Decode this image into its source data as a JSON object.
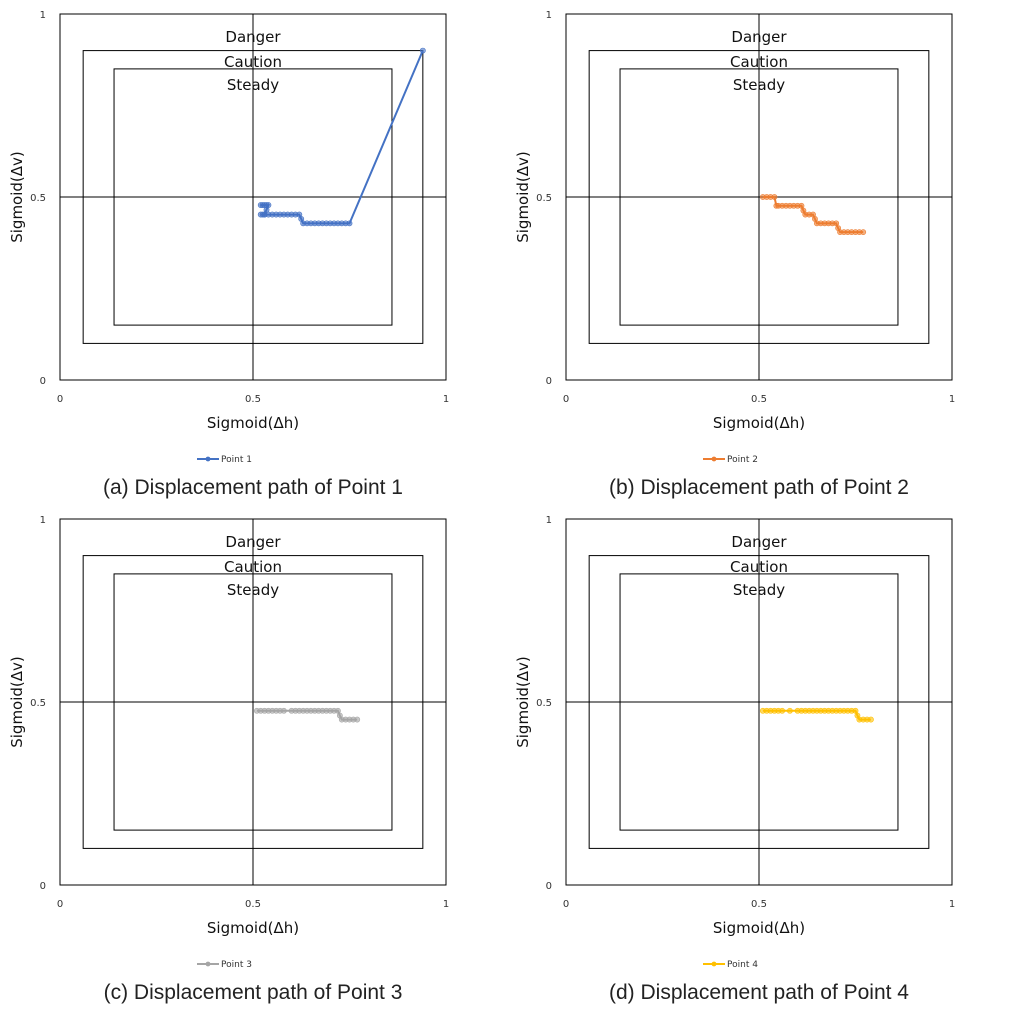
{
  "zone_labels": [
    "Danger",
    "Caution",
    "Steady"
  ],
  "chart_data": [
    {
      "type": "line",
      "caption": "(a) Displacement path of Point 1",
      "xlabel": "Sigmoid(Δh)",
      "ylabel": "Sigmoid(Δv)",
      "xlim": [
        0,
        1
      ],
      "ylim": [
        0,
        1
      ],
      "xticks": [
        "0",
        "0.5",
        "1"
      ],
      "yticks": [
        "0",
        "0.5",
        "1"
      ],
      "zones": {
        "danger": [
          0.06,
          0.94,
          0.1,
          0.9
        ],
        "steady": [
          0.14,
          0.86,
          0.15,
          0.85
        ]
      },
      "color": "#4472C4",
      "series": [
        {
          "name": "Point 1",
          "x": [
            0.52,
            0.525,
            0.53,
            0.535,
            0.54,
            0.535,
            0.53,
            0.525,
            0.52,
            0.53,
            0.54,
            0.55,
            0.56,
            0.57,
            0.58,
            0.59,
            0.6,
            0.61,
            0.62,
            0.625,
            0.63,
            0.64,
            0.65,
            0.66,
            0.67,
            0.68,
            0.69,
            0.7,
            0.71,
            0.72,
            0.73,
            0.74,
            0.75,
            0.94
          ],
          "y": [
            0.478,
            0.478,
            0.478,
            0.478,
            0.478,
            0.465,
            0.452,
            0.452,
            0.452,
            0.452,
            0.452,
            0.452,
            0.452,
            0.452,
            0.452,
            0.452,
            0.452,
            0.452,
            0.452,
            0.44,
            0.428,
            0.428,
            0.428,
            0.428,
            0.428,
            0.428,
            0.428,
            0.428,
            0.428,
            0.428,
            0.428,
            0.428,
            0.428,
            0.9
          ]
        }
      ]
    },
    {
      "type": "line",
      "caption": "(b) Displacement path of Point 2",
      "xlabel": "Sigmoid(Δh)",
      "ylabel": "Sigmoid(Δv)",
      "xlim": [
        0,
        1
      ],
      "ylim": [
        0,
        1
      ],
      "xticks": [
        "0",
        "0.5",
        "1"
      ],
      "yticks": [
        "0",
        "0.5",
        "1"
      ],
      "zones": {
        "danger": [
          0.06,
          0.94,
          0.1,
          0.9
        ],
        "steady": [
          0.14,
          0.86,
          0.15,
          0.85
        ]
      },
      "color": "#ED7D31",
      "series": [
        {
          "name": "Point 2",
          "x": [
            0.51,
            0.52,
            0.53,
            0.54,
            0.545,
            0.55,
            0.56,
            0.57,
            0.58,
            0.59,
            0.6,
            0.61,
            0.615,
            0.62,
            0.63,
            0.64,
            0.645,
            0.65,
            0.66,
            0.67,
            0.68,
            0.69,
            0.7,
            0.705,
            0.71,
            0.72,
            0.73,
            0.74,
            0.75,
            0.76,
            0.77
          ],
          "y": [
            0.5,
            0.5,
            0.5,
            0.5,
            0.476,
            0.476,
            0.476,
            0.476,
            0.476,
            0.476,
            0.476,
            0.476,
            0.463,
            0.452,
            0.452,
            0.452,
            0.44,
            0.428,
            0.428,
            0.428,
            0.428,
            0.428,
            0.428,
            0.415,
            0.404,
            0.404,
            0.404,
            0.404,
            0.404,
            0.404,
            0.404
          ]
        }
      ]
    },
    {
      "type": "line",
      "caption": "(c) Displacement path of Point 3",
      "xlabel": "Sigmoid(Δh)",
      "ylabel": "Sigmoid(Δv)",
      "xlim": [
        0,
        1
      ],
      "ylim": [
        0,
        1
      ],
      "xticks": [
        "0",
        "0.5",
        "1"
      ],
      "yticks": [
        "0",
        "0.5",
        "1"
      ],
      "zones": {
        "danger": [
          0.06,
          0.94,
          0.1,
          0.9
        ],
        "steady": [
          0.14,
          0.86,
          0.15,
          0.85
        ]
      },
      "color": "#A5A5A5",
      "series": [
        {
          "name": "Point 3",
          "x": [
            0.51,
            0.52,
            0.53,
            0.54,
            0.55,
            0.56,
            0.57,
            0.58,
            0.6,
            0.61,
            0.62,
            0.63,
            0.64,
            0.65,
            0.66,
            0.67,
            0.68,
            0.69,
            0.7,
            0.71,
            0.72,
            0.725,
            0.73,
            0.74,
            0.75,
            0.76,
            0.77
          ],
          "y": [
            0.476,
            0.476,
            0.476,
            0.476,
            0.476,
            0.476,
            0.476,
            0.476,
            0.476,
            0.476,
            0.476,
            0.476,
            0.476,
            0.476,
            0.476,
            0.476,
            0.476,
            0.476,
            0.476,
            0.476,
            0.476,
            0.463,
            0.452,
            0.452,
            0.452,
            0.452,
            0.452
          ]
        }
      ]
    },
    {
      "type": "line",
      "caption": "(d) Displacement path of Point 4",
      "xlabel": "Sigmoid(Δh)",
      "ylabel": "Sigmoid(Δv)",
      "xlim": [
        0,
        1
      ],
      "ylim": [
        0,
        1
      ],
      "xticks": [
        "0",
        "0.5",
        "1"
      ],
      "yticks": [
        "0",
        "0.5",
        "1"
      ],
      "zones": {
        "danger": [
          0.06,
          0.94,
          0.1,
          0.9
        ],
        "steady": [
          0.14,
          0.86,
          0.15,
          0.85
        ]
      },
      "color": "#FFC000",
      "series": [
        {
          "name": "Point 4",
          "x": [
            0.51,
            0.52,
            0.53,
            0.54,
            0.55,
            0.56,
            0.58,
            0.6,
            0.61,
            0.62,
            0.63,
            0.64,
            0.65,
            0.66,
            0.67,
            0.68,
            0.69,
            0.7,
            0.71,
            0.72,
            0.73,
            0.74,
            0.75,
            0.755,
            0.76,
            0.77,
            0.78,
            0.79
          ],
          "y": [
            0.476,
            0.476,
            0.476,
            0.476,
            0.476,
            0.476,
            0.476,
            0.476,
            0.476,
            0.476,
            0.476,
            0.476,
            0.476,
            0.476,
            0.476,
            0.476,
            0.476,
            0.476,
            0.476,
            0.476,
            0.476,
            0.476,
            0.476,
            0.463,
            0.452,
            0.452,
            0.452,
            0.452
          ]
        }
      ]
    }
  ]
}
